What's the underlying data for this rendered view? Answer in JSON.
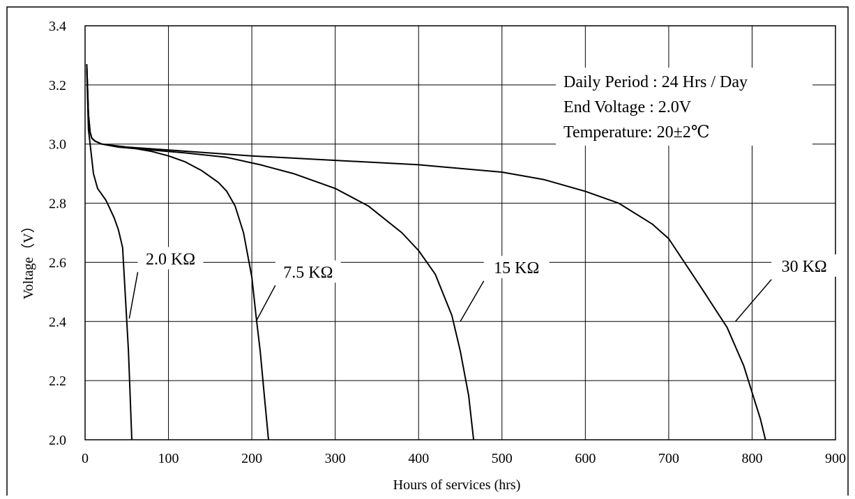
{
  "chart_data": {
    "type": "line",
    "title": "",
    "xlabel": "Hours of services (hrs)",
    "ylabel": "Voltage（V）",
    "xlim": [
      0,
      900
    ],
    "ylim": [
      2.0,
      3.4
    ],
    "xticks": [
      "0",
      "100",
      "200",
      "300",
      "400",
      "500",
      "600",
      "700",
      "800",
      "900"
    ],
    "yticks": [
      "2.0",
      "2.2",
      "2.4",
      "2.6",
      "2.8",
      "3.0",
      "3.2",
      "3.4"
    ],
    "grid": true,
    "legend": "none",
    "annotation": [
      "Daily Period : 24 Hrs / Day",
      "End Voltage : 2.0V",
      "Temperature:  20±2℃"
    ],
    "series": [
      {
        "name": "2.0 KΩ",
        "x": [
          2,
          4,
          6,
          8,
          10,
          15,
          20,
          25,
          30,
          35,
          40,
          45,
          48,
          50,
          52,
          54,
          56
        ],
        "y": [
          3.25,
          3.05,
          3.0,
          2.95,
          2.9,
          2.85,
          2.83,
          2.81,
          2.78,
          2.75,
          2.71,
          2.65,
          2.5,
          2.4,
          2.3,
          2.15,
          2.0
        ]
      },
      {
        "name": "7.5 KΩ",
        "x": [
          2,
          4,
          6,
          8,
          12,
          20,
          40,
          60,
          80,
          100,
          120,
          140,
          160,
          170,
          180,
          190,
          200,
          205,
          210,
          215,
          220
        ],
        "y": [
          3.27,
          3.1,
          3.04,
          3.02,
          3.01,
          3.0,
          2.99,
          2.985,
          2.975,
          2.96,
          2.94,
          2.91,
          2.87,
          2.84,
          2.79,
          2.7,
          2.55,
          2.42,
          2.3,
          2.15,
          2.0
        ]
      },
      {
        "name": "15 KΩ",
        "x": [
          2,
          4,
          6,
          8,
          12,
          20,
          40,
          80,
          120,
          170,
          210,
          250,
          300,
          340,
          380,
          400,
          420,
          440,
          450,
          460,
          466
        ],
        "y": [
          3.27,
          3.1,
          3.04,
          3.02,
          3.01,
          3.0,
          2.99,
          2.98,
          2.97,
          2.955,
          2.93,
          2.9,
          2.85,
          2.79,
          2.7,
          2.64,
          2.56,
          2.42,
          2.3,
          2.15,
          2.0
        ]
      },
      {
        "name": "30 KΩ",
        "x": [
          2,
          4,
          6,
          8,
          12,
          20,
          50,
          100,
          200,
          300,
          400,
          500,
          550,
          600,
          640,
          680,
          700,
          740,
          770,
          790,
          800,
          810,
          816
        ],
        "y": [
          3.27,
          3.1,
          3.04,
          3.02,
          3.01,
          3.0,
          2.99,
          2.98,
          2.96,
          2.945,
          2.93,
          2.905,
          2.88,
          2.84,
          2.8,
          2.73,
          2.68,
          2.51,
          2.38,
          2.25,
          2.16,
          2.07,
          2.0
        ]
      }
    ],
    "curve_labels": [
      {
        "text": "2.0 KΩ",
        "at": [
          100,
          2.6
        ],
        "leader_to": [
          53,
          2.41
        ]
      },
      {
        "text": "7.5 KΩ",
        "at": [
          265,
          2.555
        ],
        "leader_to": [
          205,
          2.4
        ]
      },
      {
        "text": "15 KΩ",
        "at": [
          515,
          2.57
        ],
        "leader_to": [
          450,
          2.4
        ]
      },
      {
        "text": "30 KΩ",
        "at": [
          860,
          2.575
        ],
        "leader_to": [
          780,
          2.4
        ]
      }
    ]
  }
}
